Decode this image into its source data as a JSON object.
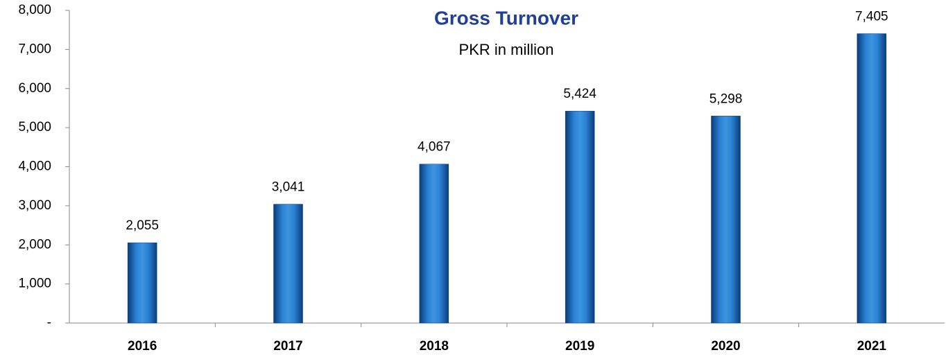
{
  "chart_data": {
    "type": "bar",
    "title": "Gross Turnover",
    "subtitle": "PKR in million",
    "categories": [
      "2016",
      "2017",
      "2018",
      "2019",
      "2020",
      "2021"
    ],
    "values": [
      2055,
      3041,
      4067,
      5424,
      5298,
      7405
    ],
    "value_labels": [
      "2,055",
      "3,041",
      "4,067",
      "5,424",
      "5,298",
      "7,405"
    ],
    "color": "#1f6fc0",
    "ylim": [
      0,
      8000
    ],
    "yticks": [
      {
        "value": 0,
        "label": "-"
      },
      {
        "value": 1000,
        "label": "1,000"
      },
      {
        "value": 2000,
        "label": "2,000"
      },
      {
        "value": 3000,
        "label": "3,000"
      },
      {
        "value": 4000,
        "label": "4,000"
      },
      {
        "value": 5000,
        "label": "5,000"
      },
      {
        "value": 6000,
        "label": "6,000"
      },
      {
        "value": 7000,
        "label": "7,000"
      },
      {
        "value": 8000,
        "label": "8,000"
      }
    ],
    "grid": false
  }
}
